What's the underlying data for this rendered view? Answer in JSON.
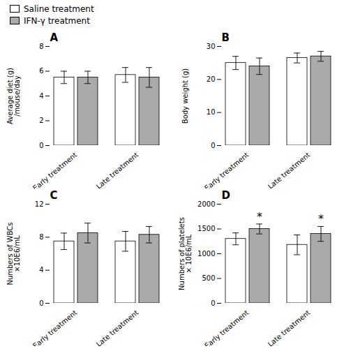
{
  "chart_data": [
    {
      "type": "bar",
      "title": "A",
      "ylabel": "Average diet (g)\n/mouse/day",
      "categories": [
        "Early treatment",
        "Late treatment"
      ],
      "series": [
        {
          "name": "Saline treatment",
          "color": "#ffffff",
          "values": [
            5.5,
            5.7
          ],
          "errors": [
            0.5,
            0.6
          ]
        },
        {
          "name": "IFN-γ treatment",
          "color": "#aaaaaa",
          "values": [
            5.5,
            5.5
          ],
          "errors": [
            0.5,
            0.8
          ]
        }
      ],
      "ylim": [
        0,
        8
      ],
      "yticks": [
        0,
        2,
        4,
        6,
        8
      ],
      "legend": "upper left"
    },
    {
      "type": "bar",
      "title": "B",
      "ylabel": "Body weight (g)",
      "categories": [
        "Early treatment",
        "Late treatment"
      ],
      "series": [
        {
          "name": "Saline treatment",
          "color": "#ffffff",
          "values": [
            25.0,
            26.5
          ],
          "errors": [
            2.0,
            1.5
          ]
        },
        {
          "name": "IFN-γ treatment",
          "color": "#aaaaaa",
          "values": [
            24.0,
            27.0
          ],
          "errors": [
            2.5,
            1.5
          ]
        }
      ],
      "ylim": [
        0,
        30
      ],
      "yticks": [
        0,
        10,
        20,
        30
      ],
      "legend": "upper left"
    },
    {
      "type": "bar",
      "title": "C",
      "ylabel": "Numbers of WBCs\n×10E6/mL",
      "categories": [
        "Early treatment",
        "Late treatment"
      ],
      "series": [
        {
          "name": "Saline treatment",
          "color": "#ffffff",
          "values": [
            7.5,
            7.5
          ],
          "errors": [
            1.0,
            1.2
          ]
        },
        {
          "name": "IFN-γ treatment",
          "color": "#aaaaaa",
          "values": [
            8.5,
            8.3
          ],
          "errors": [
            1.2,
            1.0
          ]
        }
      ],
      "ylim": [
        0,
        12
      ],
      "yticks": [
        0,
        4,
        8,
        12
      ],
      "legend": "upper left"
    },
    {
      "type": "bar",
      "title": "D",
      "ylabel": "Numbers of platelets\n× 10E6/mL",
      "categories": [
        "Early treatment",
        "Late treatment"
      ],
      "series": [
        {
          "name": "Saline treatment",
          "color": "#ffffff",
          "values": [
            1300,
            1180
          ],
          "errors": [
            120,
            200
          ]
        },
        {
          "name": "IFN-γ treatment",
          "color": "#aaaaaa",
          "values": [
            1500,
            1400
          ],
          "errors": [
            100,
            150
          ]
        }
      ],
      "ylim": [
        0,
        2000
      ],
      "yticks": [
        0,
        500,
        1000,
        1500,
        2000
      ],
      "legend": "upper left",
      "annotations": [
        {
          "text": "*",
          "series": "IFN-γ treatment",
          "category": "Early treatment"
        },
        {
          "text": "*",
          "series": "IFN-γ treatment",
          "category": "Late treatment"
        }
      ]
    }
  ]
}
